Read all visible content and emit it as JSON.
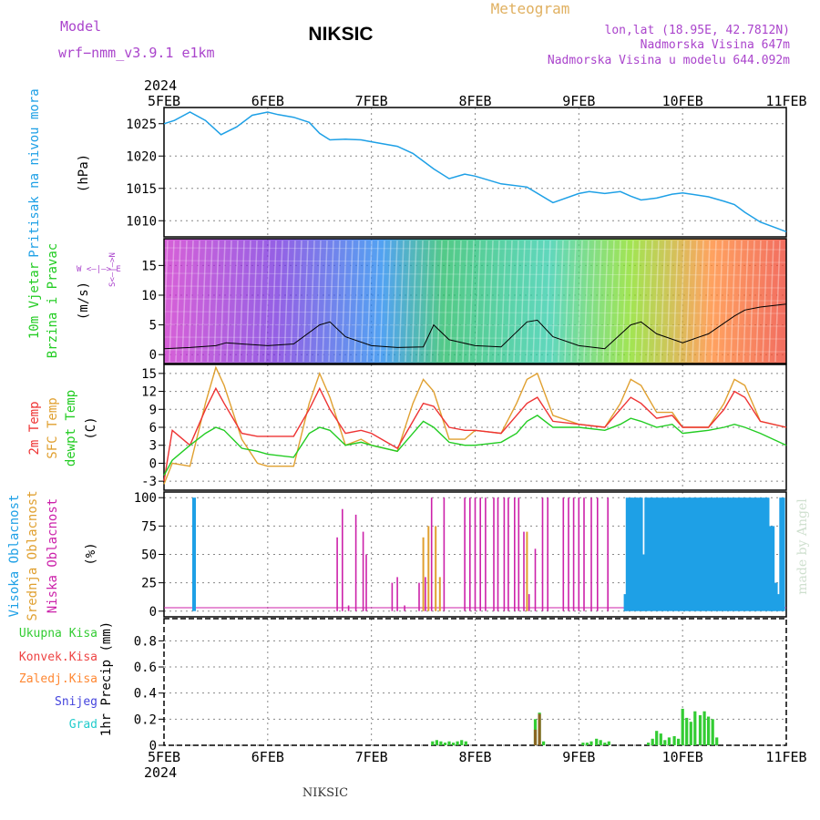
{
  "header": {
    "model_label": "Model",
    "model_name": "wrf−nmm_v3.9.1  e1km",
    "station": "NIKSIC",
    "meteogram": "Meteogram",
    "lonlat": "lon,lat (18.95E, 42.7812N)",
    "elevation": "Nadmorska Visina 647m",
    "model_elevation": "Nadmorska Visina u modelu 644.092m"
  },
  "footer": {
    "station": "NIKSIC",
    "credit": "made by Angel"
  },
  "time_axis": {
    "year": "2024",
    "start_day": 5,
    "end_day": 11,
    "tick_labels": [
      "5FEB",
      "6FEB",
      "7FEB",
      "8FEB",
      "9FEB",
      "10FEB",
      "11FEB"
    ]
  },
  "colors": {
    "pressure": "#1ea0e6",
    "wind_label": "#22cc22",
    "temp2m": "#ee3333",
    "sfc": "#e0a030",
    "dewpt": "#22cc22",
    "high_cloud": "#1ea0e6",
    "mid_cloud": "#e0a030",
    "low_cloud": "#cc22aa",
    "total_precip": "#33cc33",
    "conv_precip": "#ee4444",
    "frz_precip": "#ff8833",
    "snow": "#4444dd",
    "hail": "#22cccc",
    "purple_text": "#aa44cc"
  },
  "panels": {
    "pressure": {
      "label": "Pritisak na nivou mora",
      "unit": "(hPa)",
      "ticks": [
        "1010",
        "1015",
        "1020",
        "1025"
      ]
    },
    "wind": {
      "label1": "10m Vjetar",
      "label2": "Brzina i Pravac",
      "unit": "(m/s)",
      "ticks": [
        "0",
        "5",
        "10",
        "15"
      ],
      "compass": "W <—|—> E",
      "compass_v": "S<—|—>N"
    },
    "temp": {
      "label1": "2m Temp",
      "label2": "SFC Temp",
      "label3": "dewpt Temp",
      "unit": "(C)",
      "ticks": [
        "-3",
        "0",
        "3",
        "6",
        "9",
        "12",
        "15"
      ]
    },
    "cloud": {
      "label1": "Visoka Oblacnost",
      "label2": "Srednja Oblacnost",
      "label3": "Niska Oblacnost",
      "unit": "(%)",
      "ticks": [
        "0",
        "25",
        "50",
        "75",
        "100"
      ]
    },
    "precip": {
      "leg1": "Ukupna Kisa",
      "leg2": "Konvek.Kisa",
      "leg3": "Zaledj.Kisa",
      "leg4": "Snijeg",
      "leg5": "Grad",
      "unit": "1hr Precip (mm)",
      "ticks": [
        "0",
        "0.2",
        "0.4",
        "0.6",
        "0.8"
      ]
    }
  },
  "chart_data": [
    {
      "type": "line",
      "title": "Pritisak na nivou mora",
      "ylabel": "(hPa)",
      "ylim": [
        1007.5,
        1027.5
      ],
      "x": [
        5.0,
        5.1,
        5.25,
        5.4,
        5.55,
        5.7,
        5.85,
        6.0,
        6.1,
        6.25,
        6.4,
        6.5,
        6.6,
        6.75,
        6.9,
        7.0,
        7.25,
        7.4,
        7.5,
        7.6,
        7.75,
        7.9,
        8.0,
        8.25,
        8.5,
        8.75,
        9.0,
        9.1,
        9.25,
        9.4,
        9.5,
        9.6,
        9.75,
        9.9,
        10.0,
        10.25,
        10.4,
        10.5,
        10.6,
        10.75,
        11.0
      ],
      "series": [
        {
          "values": [
            1025,
            1025.5,
            1026.8,
            1025.5,
            1023.3,
            1024.5,
            1026.3,
            1026.8,
            1026.4,
            1026,
            1025.2,
            1023.5,
            1022.5,
            1022.6,
            1022.5,
            1022.2,
            1021.5,
            1020.4,
            1019.2,
            1018.0,
            1016.5,
            1017.2,
            1016.9,
            1015.7,
            1015.2,
            1012.8,
            1014.2,
            1014.5,
            1014.2,
            1014.5,
            1013.8,
            1013.2,
            1013.5,
            1014.1,
            1014.3,
            1013.7,
            1013.0,
            1012.5,
            1011.3,
            1009.8,
            1008.3
          ]
        }
      ]
    },
    {
      "type": "line",
      "title": "10m Vjetar Brzina i Pravac",
      "ylabel": "(m/s)",
      "ylim": [
        -1.5,
        19.5
      ],
      "x": [
        5.0,
        5.25,
        5.5,
        5.6,
        5.75,
        6.0,
        6.25,
        6.5,
        6.6,
        6.75,
        7.0,
        7.25,
        7.5,
        7.6,
        7.75,
        8.0,
        8.25,
        8.5,
        8.6,
        8.75,
        9.0,
        9.25,
        9.5,
        9.6,
        9.75,
        10.0,
        10.25,
        10.5,
        10.6,
        10.75,
        11.0
      ],
      "series": [
        {
          "values": [
            1.0,
            1.2,
            1.5,
            2.0,
            1.8,
            1.5,
            1.8,
            5.0,
            5.5,
            3.0,
            1.5,
            1.2,
            1.3,
            5.0,
            2.5,
            1.5,
            1.3,
            5.5,
            5.8,
            3.0,
            1.5,
            1.0,
            5.0,
            5.5,
            3.5,
            2.0,
            3.5,
            6.5,
            7.5,
            8.0,
            8.5
          ]
        }
      ]
    },
    {
      "type": "line",
      "title": "2m Temp / SFC Temp / dewpt Temp",
      "ylabel": "(C)",
      "ylim": [
        -4.5,
        16.5
      ],
      "x": [
        5.0,
        5.08,
        5.25,
        5.4,
        5.5,
        5.58,
        5.75,
        5.9,
        6.0,
        6.25,
        6.4,
        6.5,
        6.6,
        6.75,
        6.9,
        7.0,
        7.25,
        7.4,
        7.5,
        7.6,
        7.75,
        7.9,
        8.0,
        8.25,
        8.4,
        8.5,
        8.6,
        8.75,
        9.0,
        9.25,
        9.4,
        9.5,
        9.6,
        9.75,
        9.9,
        10.0,
        10.25,
        10.4,
        10.5,
        10.6,
        10.75,
        11.0
      ],
      "series": [
        {
          "name": "2m Temp",
          "values": [
            -3,
            5.5,
            3,
            9,
            12.5,
            10,
            5,
            4.5,
            4.5,
            4.5,
            9,
            12.5,
            9,
            5,
            5.5,
            5,
            2.5,
            7,
            10,
            9.5,
            6,
            5.5,
            5.5,
            5,
            8,
            10,
            11,
            7,
            6.5,
            6,
            9,
            11,
            10,
            7.5,
            8,
            6,
            6,
            9,
            12,
            11,
            7,
            6
          ]
        },
        {
          "name": "SFC Temp",
          "values": [
            -3.5,
            0,
            -0.5,
            10,
            16,
            13,
            4,
            0,
            -0.5,
            -0.5,
            10,
            15,
            11,
            3,
            4,
            3,
            2,
            10,
            14,
            12,
            4,
            4,
            5.5,
            5,
            10,
            14,
            15,
            8,
            6.5,
            6,
            10,
            14,
            13,
            8.5,
            8.5,
            6,
            6,
            10,
            14,
            13,
            7,
            6
          ]
        },
        {
          "name": "dewpt Temp",
          "values": [
            -2,
            0.5,
            3,
            5,
            6,
            5.5,
            2.5,
            2,
            1.5,
            1,
            5,
            6,
            5.5,
            3,
            3.5,
            3,
            2,
            5,
            7,
            6,
            3.5,
            3,
            3,
            3.5,
            5,
            7,
            8,
            6,
            6,
            5.5,
            6.5,
            7.5,
            7,
            6,
            6.5,
            5,
            5.5,
            6,
            6.5,
            6,
            5,
            3
          ]
        }
      ]
    },
    {
      "type": "bar",
      "title": "Visoka / Srednja / Niska Oblacnost",
      "ylabel": "(%)",
      "ylim": [
        -5,
        105
      ],
      "series": [
        {
          "name": "Visoka Oblacnost",
          "x": [
            5.29,
            9.45,
            9.47,
            9.5,
            9.52,
            9.55,
            9.57,
            9.6,
            9.62,
            9.65,
            9.67,
            9.7,
            9.72,
            9.75,
            9.77,
            9.8,
            9.82,
            9.85,
            9.87,
            9.9,
            9.92,
            9.95,
            9.97,
            10.0,
            10.02,
            10.05,
            10.07,
            10.1,
            10.12,
            10.15,
            10.17,
            10.2,
            10.22,
            10.25,
            10.27,
            10.3,
            10.32,
            10.35,
            10.37,
            10.4,
            10.42,
            10.45,
            10.47,
            10.5,
            10.52,
            10.55,
            10.57,
            10.6,
            10.62,
            10.65,
            10.67,
            10.7,
            10.72,
            10.75,
            10.77,
            10.8,
            10.82,
            10.85,
            10.87,
            10.9,
            10.92,
            10.95,
            10.97
          ],
          "values": [
            100,
            15,
            100,
            100,
            100,
            100,
            100,
            100,
            50,
            100,
            100,
            100,
            100,
            100,
            100,
            100,
            100,
            100,
            100,
            100,
            100,
            100,
            100,
            100,
            100,
            100,
            100,
            100,
            100,
            100,
            100,
            100,
            100,
            100,
            100,
            100,
            100,
            100,
            100,
            100,
            100,
            100,
            100,
            100,
            100,
            100,
            100,
            100,
            100,
            100,
            100,
            100,
            100,
            100,
            100,
            100,
            100,
            75,
            75,
            25,
            15,
            100,
            100
          ]
        },
        {
          "name": "Srednja Oblacnost",
          "x": [
            7.5,
            7.55,
            7.62,
            7.66,
            8.5
          ],
          "values": [
            65,
            75,
            75,
            30,
            70
          ]
        },
        {
          "name": "Niska Oblacnost",
          "x": [
            6.67,
            6.72,
            6.78,
            6.85,
            6.92,
            6.95,
            7.2,
            7.25,
            7.32,
            7.46,
            7.52,
            7.58,
            7.7,
            7.9,
            7.95,
            8.0,
            8.05,
            8.1,
            8.18,
            8.22,
            8.28,
            8.32,
            8.38,
            8.42,
            8.47,
            8.52,
            8.58,
            8.65,
            8.7,
            8.85,
            8.9,
            8.95,
            9.0,
            9.05,
            9.12,
            9.18,
            9.28
          ],
          "values": [
            65,
            90,
            5,
            85,
            70,
            50,
            25,
            30,
            5,
            25,
            30,
            100,
            100,
            100,
            100,
            100,
            100,
            100,
            100,
            100,
            100,
            100,
            100,
            100,
            70,
            15,
            55,
            100,
            100,
            100,
            100,
            100,
            100,
            100,
            100,
            100,
            100
          ]
        }
      ]
    },
    {
      "type": "bar",
      "title": "1hr Precip",
      "ylabel": "1hr Precip (mm)",
      "ylim": [
        0,
        0.97
      ],
      "series": [
        {
          "name": "Ukupna Kisa",
          "x": [
            7.59,
            7.63,
            7.67,
            7.71,
            7.75,
            7.79,
            7.83,
            7.87,
            7.91,
            8.58,
            8.62,
            8.66,
            9.04,
            9.08,
            9.12,
            9.17,
            9.21,
            9.25,
            9.29,
            9.67,
            9.71,
            9.75,
            9.79,
            9.83,
            9.87,
            9.92,
            9.96,
            10.0,
            10.04,
            10.08,
            10.12,
            10.17,
            10.21,
            10.25,
            10.29,
            10.33
          ],
          "values": [
            0.03,
            0.04,
            0.03,
            0.02,
            0.03,
            0.02,
            0.03,
            0.04,
            0.03,
            0.2,
            0.25,
            0.03,
            0.02,
            0.02,
            0.03,
            0.05,
            0.04,
            0.02,
            0.03,
            0.02,
            0.05,
            0.11,
            0.09,
            0.04,
            0.06,
            0.07,
            0.05,
            0.28,
            0.21,
            0.18,
            0.26,
            0.23,
            0.26,
            0.22,
            0.2,
            0.06
          ]
        },
        {
          "name": "Konvek.Kisa",
          "x": [
            8.58,
            8.62
          ],
          "values": [
            0.12,
            0.24
          ]
        }
      ]
    }
  ]
}
